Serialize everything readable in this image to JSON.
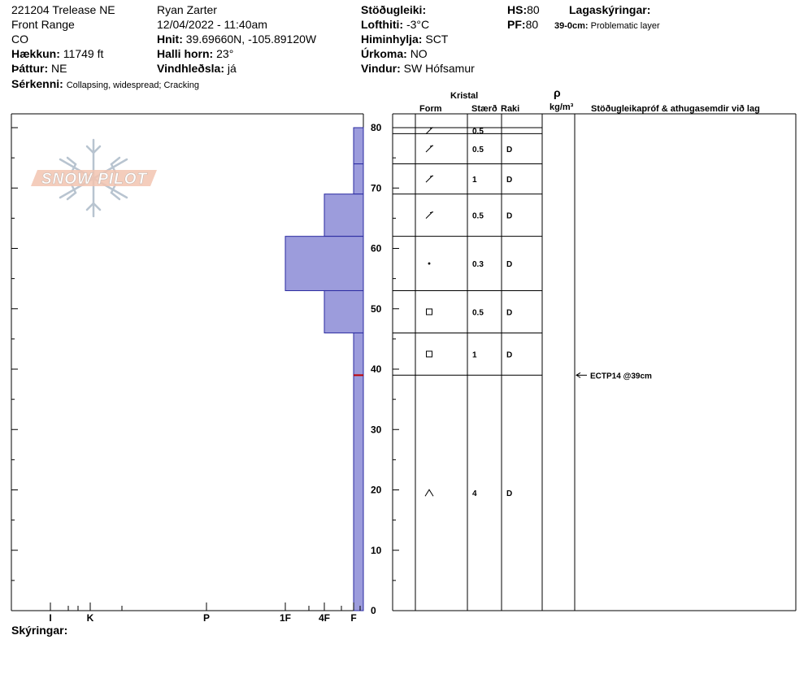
{
  "header": {
    "left": {
      "site": "221204 Trelease NE",
      "range": "Front Range",
      "state": "CO",
      "elevation_label": "Hækkun:",
      "elevation": "11749 ft",
      "aspect_label": "Þáttur:",
      "aspect": "NE",
      "features_label": "Sérkenni:",
      "features": "Collapsing, widespread; Cracking"
    },
    "middle": {
      "observer": "Ryan Zarter",
      "datetime": "12/04/2022 - 11:40am",
      "coords_label": "Hnit:",
      "coords": "39.69660N, -105.89120W",
      "slope_label": "Halli horn:",
      "slope": "23°",
      "wind_loading_label": "Vindhleðsla:",
      "wind_loading": "já"
    },
    "right": {
      "stability_label": "Stöðugleiki:",
      "stability": "",
      "air_temp_label": "Lofthiti:",
      "air_temp": "-3°C",
      "sky_label": "Himinhylja:",
      "sky": "SCT",
      "precip_label": "Úrkoma:",
      "precip": "NO",
      "wind_label": "Vindur:",
      "wind": "SW Hófsamur"
    },
    "far_right": {
      "hs_label": "HS:",
      "hs": "80",
      "pf_label": "PF:",
      "pf": "80",
      "layer_notes_label": "Lagaskýringar:",
      "layer_note_range": "39-0cm:",
      "layer_note_text": "Problematic layer"
    }
  },
  "footer": {
    "notes_label": "Skýringar:"
  },
  "logo": {
    "text": "SNOW PILOT"
  },
  "table": {
    "kristal_label": "Kristal",
    "form_label": "Form",
    "size_label": "Stærð",
    "moisture_label": "Raki",
    "density_symbol": "ρ",
    "density_unit": "kg/m³",
    "comments_label": "Stöðugleikapróf & athugasemdir við lag"
  },
  "colors": {
    "hardness_fill": "#9c9cdc",
    "hardness_stroke": "#2a2aa0",
    "test_marker": "#c00000"
  },
  "chart_data": {
    "type": "bar",
    "ylim": [
      0,
      80
    ],
    "yticks": [
      0,
      10,
      20,
      30,
      40,
      50,
      60,
      70,
      80
    ],
    "xaxis_labels": [
      "I",
      "K",
      "P",
      "1F",
      "4F",
      "F"
    ],
    "hardness_layers": [
      {
        "top": 80,
        "bottom": 74,
        "hardness": "F"
      },
      {
        "top": 74,
        "bottom": 69,
        "hardness": "F"
      },
      {
        "top": 69,
        "bottom": 62,
        "hardness": "4F"
      },
      {
        "top": 62,
        "bottom": 53,
        "hardness": "1F"
      },
      {
        "top": 53,
        "bottom": 46,
        "hardness": "4F"
      },
      {
        "top": 46,
        "bottom": 39,
        "hardness": "F"
      },
      {
        "top": 39,
        "bottom": 0,
        "hardness": "F"
      }
    ],
    "layers": [
      {
        "top": 80,
        "bottom": 79,
        "form": "decomposing",
        "size": "0.5",
        "moisture": ""
      },
      {
        "top": 79,
        "bottom": 74,
        "form": "decomposing",
        "size": "0.5",
        "moisture": "D"
      },
      {
        "top": 74,
        "bottom": 69,
        "form": "decomposing",
        "size": "1",
        "moisture": "D"
      },
      {
        "top": 69,
        "bottom": 62,
        "form": "decomposing",
        "size": "0.5",
        "moisture": "D"
      },
      {
        "top": 62,
        "bottom": 53,
        "form": "rounded",
        "size": "0.3",
        "moisture": "D"
      },
      {
        "top": 53,
        "bottom": 46,
        "form": "faceted",
        "size": "0.5",
        "moisture": "D"
      },
      {
        "top": 46,
        "bottom": 39,
        "form": "faceted",
        "size": "1",
        "moisture": "D"
      },
      {
        "top": 39,
        "bottom": 0,
        "form": "depth-hoar",
        "size": "4",
        "moisture": "D"
      }
    ],
    "tests": [
      {
        "depth": 39,
        "label": "ECTP14 @39cm"
      }
    ]
  }
}
